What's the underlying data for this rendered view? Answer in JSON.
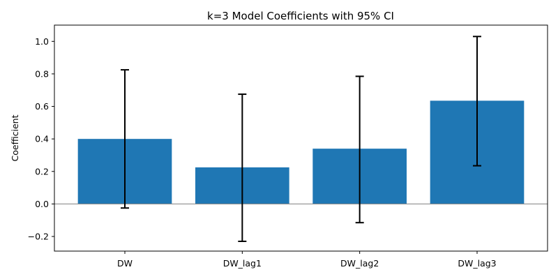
{
  "chart_data": {
    "type": "bar",
    "title": "k=3 Model Coefficients with 95% CI",
    "xlabel": "",
    "ylabel": "Coefficient",
    "categories": [
      "DW",
      "DW_lag1",
      "DW_lag2",
      "DW_lag3"
    ],
    "values": [
      0.4,
      0.225,
      0.34,
      0.635
    ],
    "ci_lower": [
      -0.025,
      -0.23,
      -0.115,
      0.235
    ],
    "ci_upper": [
      0.825,
      0.675,
      0.785,
      1.03
    ],
    "ylim": [
      -0.29,
      1.1
    ],
    "yticks": [
      -0.2,
      0.0,
      0.2,
      0.4,
      0.6,
      0.8,
      1.0
    ],
    "ytick_labels": [
      "−0.2",
      "0.0",
      "0.2",
      "0.4",
      "0.6",
      "0.8",
      "1.0"
    ],
    "zero_line": true,
    "grid": false,
    "bar_color": "#1f77b4",
    "errorbar_color": "#000000",
    "zero_line_color": "#808080"
  }
}
